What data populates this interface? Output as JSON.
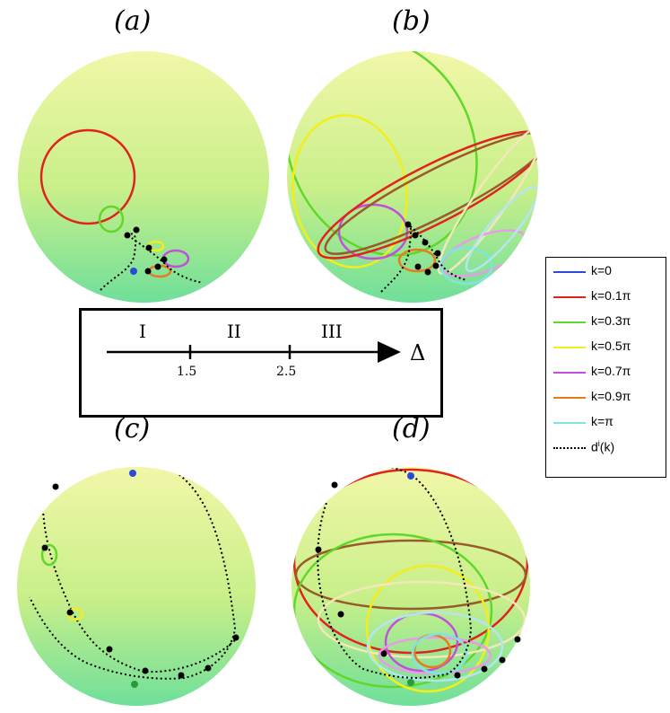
{
  "panels": [
    {
      "label": "(a)"
    },
    {
      "label": "(b)"
    },
    {
      "label": "(c)"
    },
    {
      "label": "(d)"
    }
  ],
  "phase_diagram": {
    "regions": [
      "I",
      "II",
      "III"
    ],
    "ticks": [
      "1.5",
      "2.5"
    ],
    "axis_label": "Δ"
  },
  "legend": {
    "entries": [
      {
        "label": "k=0",
        "color": "#2a4bd7"
      },
      {
        "label": "k=0.1π",
        "color": "#e0231c"
      },
      {
        "label": "k=0.3π",
        "color": "#5fd82a"
      },
      {
        "label": "k=0.5π",
        "color": "#f2ee1c"
      },
      {
        "label": "k=0.7π",
        "color": "#c04fe0"
      },
      {
        "label": "k=0.9π",
        "color": "#e87c1c"
      },
      {
        "label": "k=π",
        "color": "#7de6e0"
      }
    ],
    "dashed_entry": {
      "label": "d",
      "sup": "i",
      "suffix": "(k)"
    }
  },
  "colors": {
    "sphere_top": "#f0f7a0",
    "sphere_bottom": "#6fe09a",
    "trajectory": "#000000"
  }
}
